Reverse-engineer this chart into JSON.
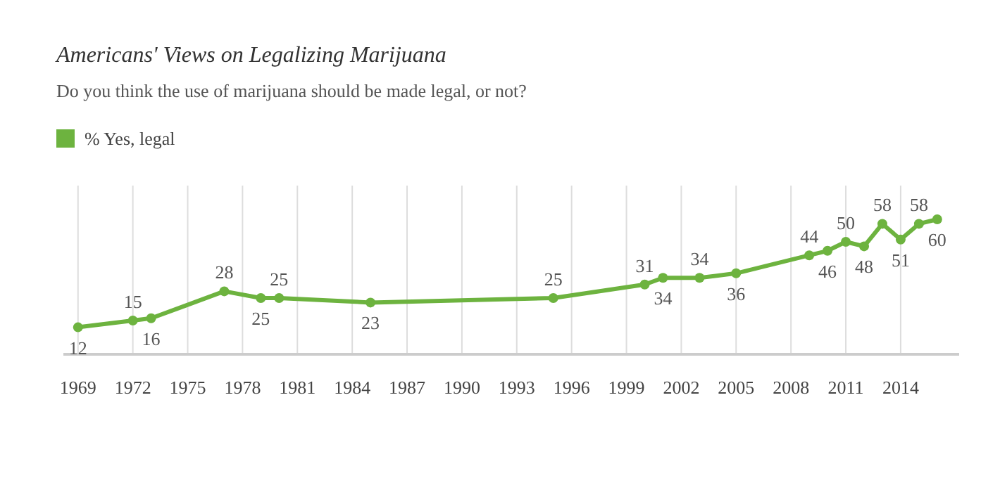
{
  "chart_data": {
    "type": "line",
    "title": "Americans' Views on Legalizing Marijuana",
    "subtitle": "Do you think the use of marijuana should be made legal, or not?",
    "x": [
      1969,
      1972,
      1973,
      1977,
      1979,
      1980,
      1985,
      1995,
      2000,
      2001,
      2003,
      2005,
      2009,
      2010,
      2011,
      2012,
      2013,
      2014,
      2015,
      2016
    ],
    "series": [
      {
        "name": "% Yes, legal",
        "color": "#6db33f",
        "values": [
          12,
          15,
          16,
          28,
          25,
          25,
          23,
          25,
          31,
          34,
          34,
          36,
          44,
          46,
          50,
          48,
          58,
          51,
          58,
          60
        ]
      }
    ],
    "xlim": [
      1968.2,
      2017.2
    ],
    "xticks": [
      1969,
      1972,
      1975,
      1978,
      1981,
      1984,
      1987,
      1990,
      1993,
      1996,
      1999,
      2002,
      2005,
      2008,
      2011,
      2014
    ],
    "ylim": [
      0,
      75
    ],
    "tick_labels": "x",
    "grid": "x",
    "legend": "top left",
    "marker": "circle",
    "line_style": "solid",
    "data_labels": true
  }
}
